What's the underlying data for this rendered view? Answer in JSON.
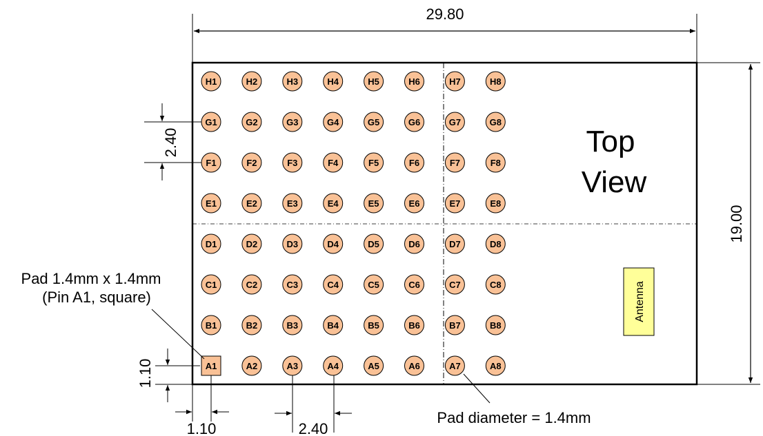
{
  "dimensions": {
    "overall_width": "29.80",
    "overall_height": "19.00",
    "pitch_vertical": "2.40",
    "pitch_horizontal": "2.40",
    "edge_offset_vertical": "1.10",
    "edge_offset_horizontal": "1.10"
  },
  "view_label": {
    "line1": "Top",
    "line2": "View"
  },
  "antenna_label": "Antenna",
  "notes": {
    "pin1_line1": "Pad 1.4mm x 1.4mm",
    "pin1_line2": "(Pin A1, square)",
    "pad_diameter": "Pad diameter = 1.4mm"
  },
  "rows": [
    "H",
    "G",
    "F",
    "E",
    "D",
    "C",
    "B",
    "A"
  ],
  "columns": [
    "1",
    "2",
    "3",
    "4",
    "5",
    "6",
    "7",
    "8"
  ],
  "colors": {
    "pad_fill": "#f9c196",
    "antenna_fill": "#ffff99",
    "outline": "#000000"
  }
}
